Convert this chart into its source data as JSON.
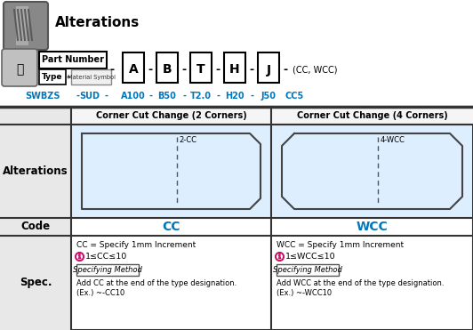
{
  "title": "Alterations",
  "bg_color": "#ffffff",
  "cyan_blue": "#0077bb",
  "pink": "#cc1166",
  "light_blue_fill": "#ddeeff",
  "gray_bg": "#e8e8e8",
  "col_hdr_bg": "#f5f5f5",
  "table": {
    "row_headers": [
      "Alterations",
      "Code",
      "Spec."
    ],
    "col_headers": [
      "Corner Cut Change (2 Corners)",
      "Corner Cut Change (4 Corners)"
    ],
    "codes": [
      "CC",
      "WCC"
    ],
    "diagram_labels": [
      "2-CC",
      "4-WCC"
    ],
    "spec_texts": [
      [
        "CC = Specify 1mm Increment",
        "1≤CC≤10",
        "Specifying Method",
        "Add CC at the end of the type designation.",
        "(Ex.) ~-CC10"
      ],
      [
        "WCC = Specify 1mm Increment",
        "1≤WCC≤10",
        "Specifying Method",
        "Add WCC at the end of the type designation.",
        "(Ex.) ~-WCC10"
      ]
    ]
  }
}
